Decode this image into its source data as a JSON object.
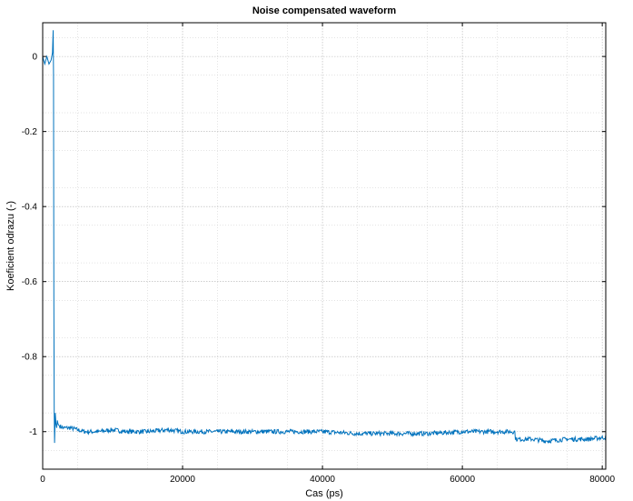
{
  "chart_data": {
    "type": "line",
    "title": "Noise compensated waveform",
    "xlabel": "Cas (ps)",
    "ylabel": "Koeficient odrazu (-)",
    "xlim": [
      0,
      80500
    ],
    "ylim": [
      -1.1,
      0.09
    ],
    "xticks": [
      0,
      20000,
      40000,
      60000,
      80000
    ],
    "yticks": [
      0,
      -0.2,
      -0.4,
      -0.6,
      -0.8,
      -1
    ],
    "grid": true,
    "line_color": "#0072bd",
    "series": [
      {
        "name": "",
        "x": [
          0,
          300,
          600,
          900,
          1200,
          1400,
          1500,
          1550,
          1600,
          1650,
          1700,
          1800,
          1900,
          2000,
          2100,
          2200,
          2400,
          3000,
          4000,
          5000,
          6000,
          8000,
          10000,
          12000,
          15000,
          18000,
          20000,
          25000,
          30000,
          35000,
          40000,
          45000,
          50000,
          55000,
          60000,
          65000,
          67500,
          67600,
          70000,
          72000,
          75000,
          78000,
          80500
        ],
        "y": [
          0.0,
          -0.02,
          0.0,
          -0.02,
          -0.01,
          0.01,
          0.07,
          -0.05,
          -0.66,
          -0.95,
          -1.03,
          -0.95,
          -0.98,
          -0.99,
          -0.97,
          -0.98,
          -0.985,
          -0.99,
          -0.99,
          -0.995,
          -1.0,
          -1.0,
          -0.995,
          -1.0,
          -1.0,
          -0.995,
          -1.0,
          -1.0,
          -1.0,
          -1.0,
          -1.0,
          -1.005,
          -1.005,
          -1.005,
          -1.0,
          -1.0,
          -1.0,
          -1.02,
          -1.02,
          -1.025,
          -1.02,
          -1.02,
          -1.015
        ]
      }
    ]
  }
}
